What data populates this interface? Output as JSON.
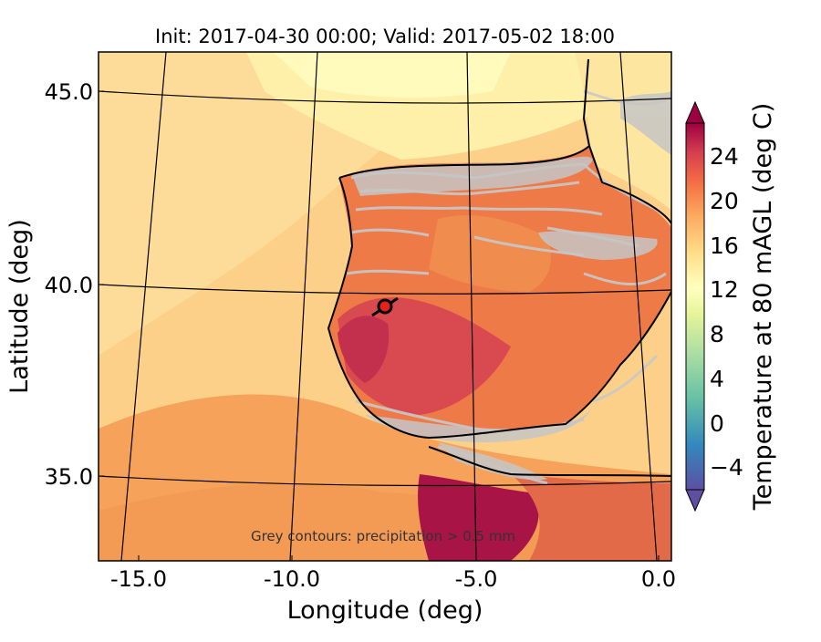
{
  "title": "Init: 2017-04-30 00:00; Valid: 2017-05-02 18:00",
  "xlabel": "Longitude (deg)",
  "ylabel": "Latitude (deg)",
  "x_ticks": [
    "-15.0",
    "-10.0",
    "-5.0",
    "0.0"
  ],
  "y_ticks": [
    "45.0",
    "40.0",
    "35.0"
  ],
  "colorbar": {
    "label": "Temperature at 80 mAGL (deg C)",
    "ticks": [
      "−4",
      "0",
      "4",
      "8",
      "12",
      "16",
      "20",
      "24"
    ],
    "range": [
      -6,
      28
    ],
    "colormap": "Spectral_r"
  },
  "annotation": "Grey contours: precipitation > 0.5 mm",
  "marker": {
    "lon": -7.6,
    "lat": 39.3,
    "color": "#e8201c"
  },
  "colors": {
    "sea_warm": "#f7a85c",
    "land_hot": "#c8304e",
    "land_mid": "#ea6a44",
    "precip_contour": "#c8c8c8",
    "coast": "#000000"
  }
}
